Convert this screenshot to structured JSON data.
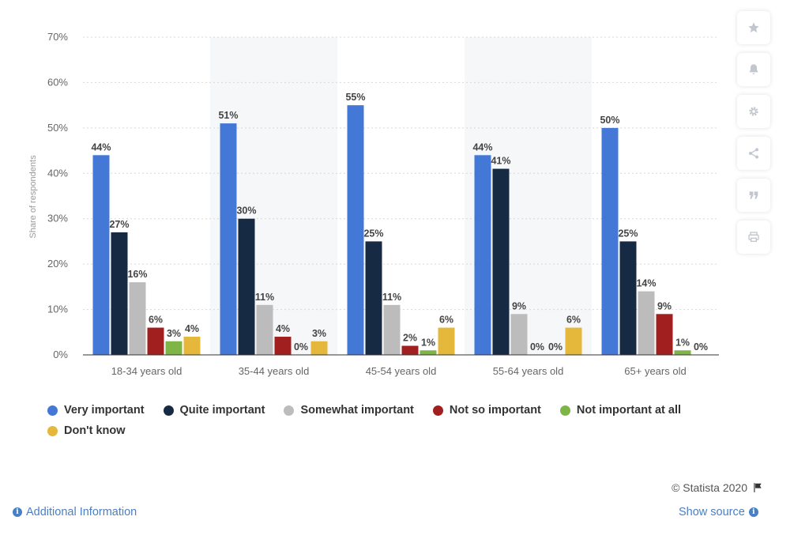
{
  "chart_data": {
    "type": "bar",
    "ylabel": "Share of respondents",
    "ylim": [
      0,
      70
    ],
    "yticks": [
      "0%",
      "10%",
      "20%",
      "30%",
      "40%",
      "50%",
      "60%",
      "70%"
    ],
    "categories": [
      "18-34 years old",
      "35-44 years old",
      "45-54 years old",
      "55-64 years old",
      "65+ years old"
    ],
    "series": [
      {
        "name": "Very important",
        "color": "#4378d6",
        "values": [
          44,
          51,
          55,
          44,
          50
        ]
      },
      {
        "name": "Quite important",
        "color": "#172a44",
        "values": [
          27,
          30,
          25,
          41,
          25
        ]
      },
      {
        "name": "Somewhat important",
        "color": "#bcbcbc",
        "values": [
          16,
          11,
          11,
          9,
          14
        ]
      },
      {
        "name": "Not so important",
        "color": "#a21f1f",
        "values": [
          6,
          4,
          2,
          0,
          9
        ]
      },
      {
        "name": "Not important at all",
        "color": "#7fb446",
        "values": [
          3,
          0,
          1,
          0,
          1
        ]
      },
      {
        "name": "Don't know",
        "color": "#e5b73b",
        "values": [
          4,
          3,
          6,
          6,
          0
        ]
      }
    ],
    "grid": true,
    "legend_position": "bottom"
  },
  "toolbar": {
    "icons": [
      "star-icon",
      "bell-icon",
      "gear-icon",
      "share-icon",
      "quote-icon",
      "print-icon"
    ]
  },
  "footer": {
    "copyright": "© Statista 2020",
    "additional_info": "Additional Information",
    "show_source": "Show source"
  }
}
